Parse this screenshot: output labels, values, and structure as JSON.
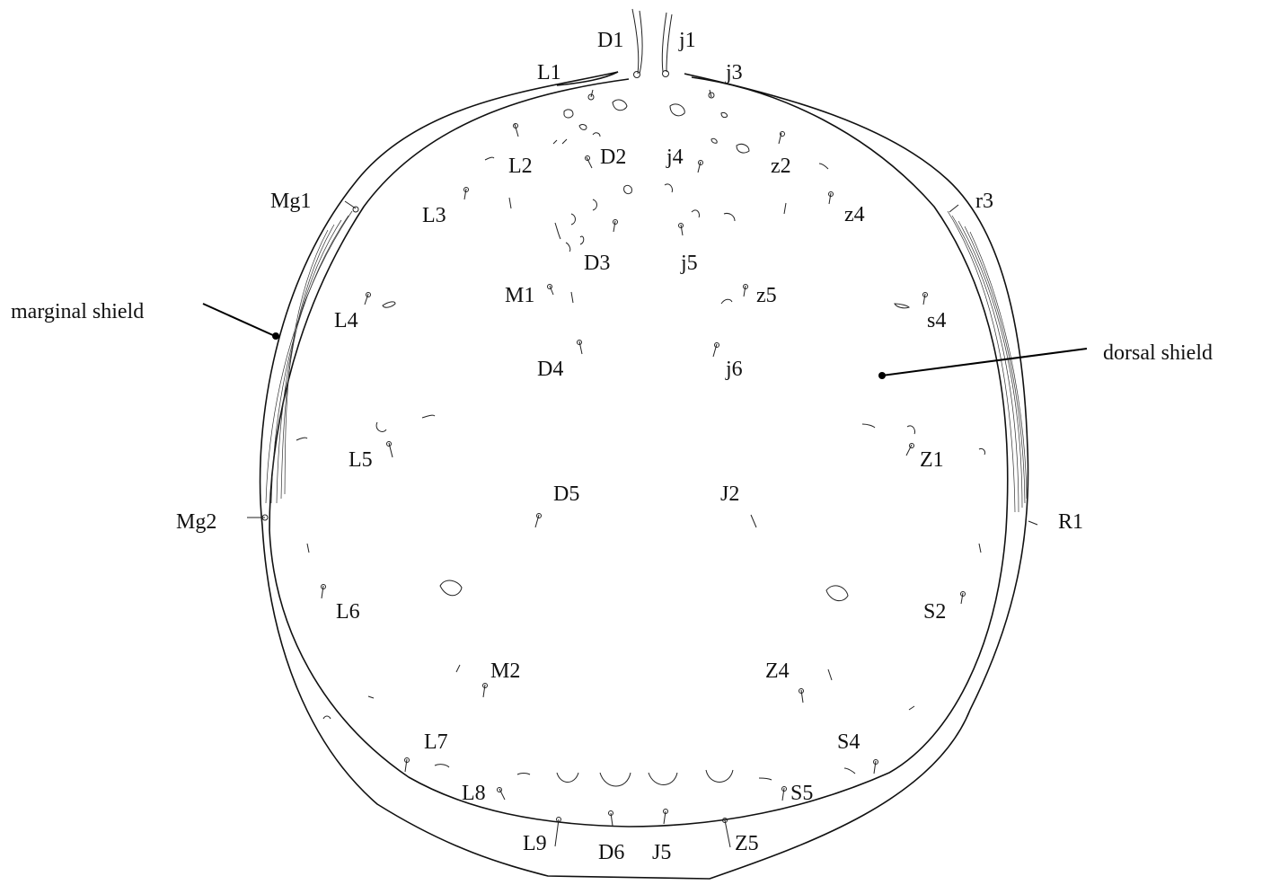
{
  "labels": {
    "D1": "D1",
    "j1": "j1",
    "L1": "L1",
    "j3": "j3",
    "L2": "L2",
    "D2": "D2",
    "j4": "j4",
    "z2": "z2",
    "Mg1": "Mg1",
    "L3": "L3",
    "z4": "z4",
    "r3": "r3",
    "D3": "D3",
    "j5": "j5",
    "M1": "M1",
    "z5": "z5",
    "L4": "L4",
    "s4": "s4",
    "D4": "D4",
    "j6": "j6",
    "L5": "L5",
    "Z1": "Z1",
    "D5": "D5",
    "J2": "J2",
    "Mg2": "Mg2",
    "R1": "R1",
    "L6": "L6",
    "S2": "S2",
    "M2": "M2",
    "Z4": "Z4",
    "L7": "L7",
    "S4": "S4",
    "L8": "L8",
    "S5": "S5",
    "L9": "L9",
    "D6": "D6",
    "J5": "J5",
    "Z5": "Z5"
  },
  "callouts": {
    "marginal_shield": "marginal shield",
    "dorsal_shield": "dorsal shield"
  }
}
